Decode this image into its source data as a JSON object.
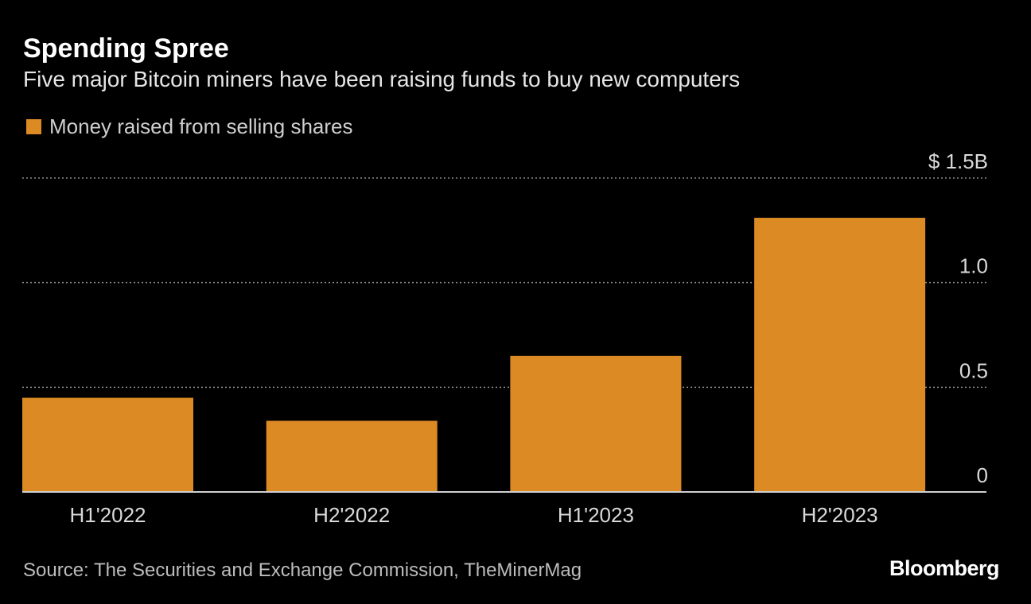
{
  "chart_data": {
    "type": "bar",
    "title": "Spending Spree",
    "subtitle": "Five major Bitcoin miners have been raising funds to buy new computers",
    "categories": [
      "H1'2022",
      "H2'2022",
      "H1'2023",
      "H2'2023"
    ],
    "series": [
      {
        "name": "Money raised from selling shares",
        "values": [
          0.45,
          0.34,
          0.65,
          1.31
        ],
        "color": "#dc8a24"
      }
    ],
    "ylim": [
      0,
      1.5
    ],
    "yticks": [
      0,
      0.5,
      1.0,
      1.5
    ],
    "ytick_labels": [
      "0",
      "0.5",
      "1.0",
      "$ 1.5B"
    ],
    "grid": true,
    "legend": "top-left",
    "source": "Source: The Securities and Exchange Commission, TheMinerMag",
    "brand": "Bloomberg"
  }
}
